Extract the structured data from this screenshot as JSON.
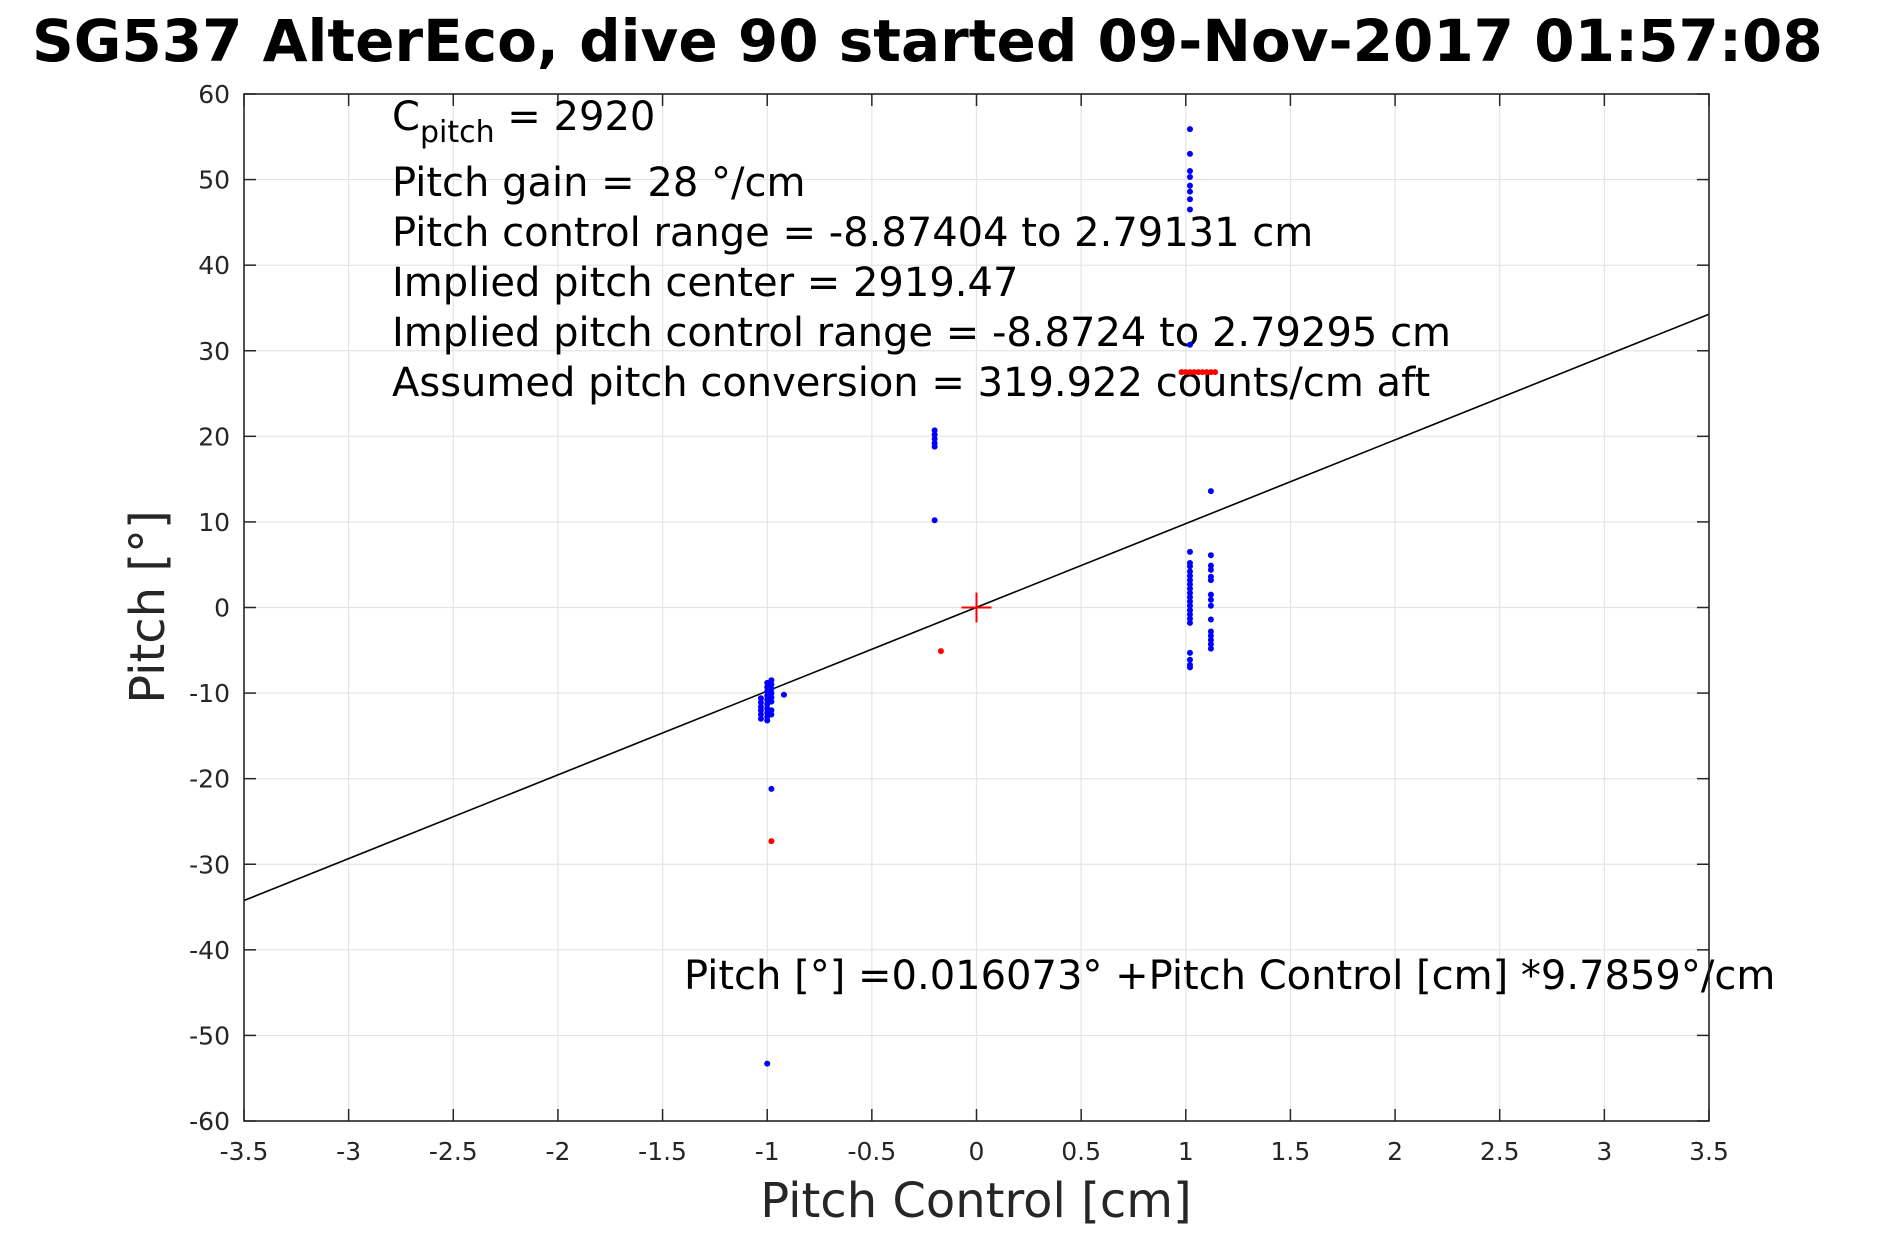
{
  "chart_data": {
    "type": "scatter",
    "title": "SG537 AlterEco, dive 90 started 09-Nov-2017 01:57:08",
    "xlabel": "Pitch Control [cm]",
    "ylabel": "Pitch [°]",
    "xlim": [
      -3.5,
      3.5
    ],
    "ylim": [
      -60,
      60
    ],
    "xticks": [
      -3.5,
      -3,
      -2.5,
      -2,
      -1.5,
      -1,
      -0.5,
      0,
      0.5,
      1,
      1.5,
      2,
      2.5,
      3,
      3.5
    ],
    "yticks": [
      -60,
      -50,
      -40,
      -30,
      -20,
      -10,
      0,
      10,
      20,
      30,
      40,
      50,
      60
    ],
    "grid": true,
    "annotations": {
      "c_pitch_base": "C",
      "c_pitch_sub": "pitch",
      "c_pitch_rest": " = 2920",
      "pitch_gain": "Pitch gain = 28 °/cm",
      "control_range": "Pitch control range = -8.87404 to 2.79131 cm",
      "implied_center": "Implied pitch center = 2919.47",
      "implied_range": "Implied pitch control range = -8.8724 to 2.79295 cm",
      "conversion": "Assumed pitch conversion = 319.922 counts/cm aft",
      "fit_equation": "Pitch [°] =0.016073° +Pitch Control [cm] *9.7859°/cm"
    },
    "fit_line": {
      "intercept": 0.016073,
      "slope": 9.7859,
      "color": "#000000"
    },
    "center_marker": {
      "x": 0,
      "y": 0,
      "color": "#ff0000"
    },
    "series": [
      {
        "color": "#0000ff",
        "points": [
          [
            -1.03,
            -10.6
          ],
          [
            -1.03,
            -11.1
          ],
          [
            -1.03,
            -11.6
          ],
          [
            -1.03,
            -12.0
          ],
          [
            -1.03,
            -12.5
          ],
          [
            -1.03,
            -13.0
          ],
          [
            -1.0,
            -8.8
          ],
          [
            -1.0,
            -9.3
          ],
          [
            -1.0,
            -9.8
          ],
          [
            -1.0,
            -10.3
          ],
          [
            -1.0,
            -10.8
          ],
          [
            -1.0,
            -11.3
          ],
          [
            -1.0,
            -11.8
          ],
          [
            -1.0,
            -12.3
          ],
          [
            -1.0,
            -12.8
          ],
          [
            -1.0,
            -13.2
          ],
          [
            -0.98,
            -8.5
          ],
          [
            -0.98,
            -9.0
          ],
          [
            -0.98,
            -9.5
          ],
          [
            -0.98,
            -10.0
          ],
          [
            -0.98,
            -10.5
          ],
          [
            -0.98,
            -11.0
          ],
          [
            -0.98,
            -12.0
          ],
          [
            -0.98,
            -12.5
          ],
          [
            -0.92,
            -10.2
          ],
          [
            -0.98,
            -21.2
          ],
          [
            -1.0,
            -53.3
          ],
          [
            -0.2,
            20.7
          ],
          [
            -0.2,
            20.2
          ],
          [
            -0.2,
            19.7
          ],
          [
            -0.2,
            19.2
          ],
          [
            -0.2,
            18.8
          ],
          [
            -0.2,
            10.2
          ],
          [
            1.02,
            55.9
          ],
          [
            1.02,
            53.0
          ],
          [
            1.02,
            51.0
          ],
          [
            1.02,
            50.3
          ],
          [
            1.02,
            49.3
          ],
          [
            1.02,
            48.6
          ],
          [
            1.02,
            47.7
          ],
          [
            1.02,
            46.5
          ],
          [
            1.02,
            30.7
          ],
          [
            1.02,
            6.5
          ],
          [
            1.02,
            5.2
          ],
          [
            1.02,
            4.8
          ],
          [
            1.02,
            4.2
          ],
          [
            1.02,
            3.7
          ],
          [
            1.02,
            3.2
          ],
          [
            1.02,
            2.7
          ],
          [
            1.02,
            2.2
          ],
          [
            1.02,
            1.7
          ],
          [
            1.02,
            1.2
          ],
          [
            1.02,
            0.7
          ],
          [
            1.02,
            0.2
          ],
          [
            1.02,
            -0.3
          ],
          [
            1.02,
            -0.8
          ],
          [
            1.02,
            -1.3
          ],
          [
            1.02,
            -1.8
          ],
          [
            1.02,
            -5.3
          ],
          [
            1.02,
            -6.1
          ],
          [
            1.02,
            -6.7
          ],
          [
            1.02,
            -7.0
          ],
          [
            1.12,
            13.6
          ],
          [
            1.12,
            6.1
          ],
          [
            1.12,
            4.9
          ],
          [
            1.12,
            4.4
          ],
          [
            1.12,
            3.6
          ],
          [
            1.12,
            3.2
          ],
          [
            1.12,
            1.5
          ],
          [
            1.12,
            0.9
          ],
          [
            1.12,
            0.2
          ],
          [
            1.12,
            -1.4
          ],
          [
            1.12,
            -2.8
          ],
          [
            1.12,
            -3.3
          ],
          [
            1.12,
            -3.8
          ],
          [
            1.12,
            -4.3
          ],
          [
            1.12,
            -4.8
          ]
        ]
      },
      {
        "color": "#ff0000",
        "points": [
          [
            -0.17,
            -5.1
          ],
          [
            -0.98,
            -27.3
          ],
          [
            0.98,
            27.5
          ],
          [
            1.0,
            27.5
          ],
          [
            1.02,
            27.5
          ],
          [
            1.04,
            27.5
          ],
          [
            1.06,
            27.5
          ],
          [
            1.08,
            27.5
          ],
          [
            1.1,
            27.5
          ],
          [
            1.12,
            27.5
          ],
          [
            1.14,
            27.5
          ]
        ]
      }
    ]
  }
}
